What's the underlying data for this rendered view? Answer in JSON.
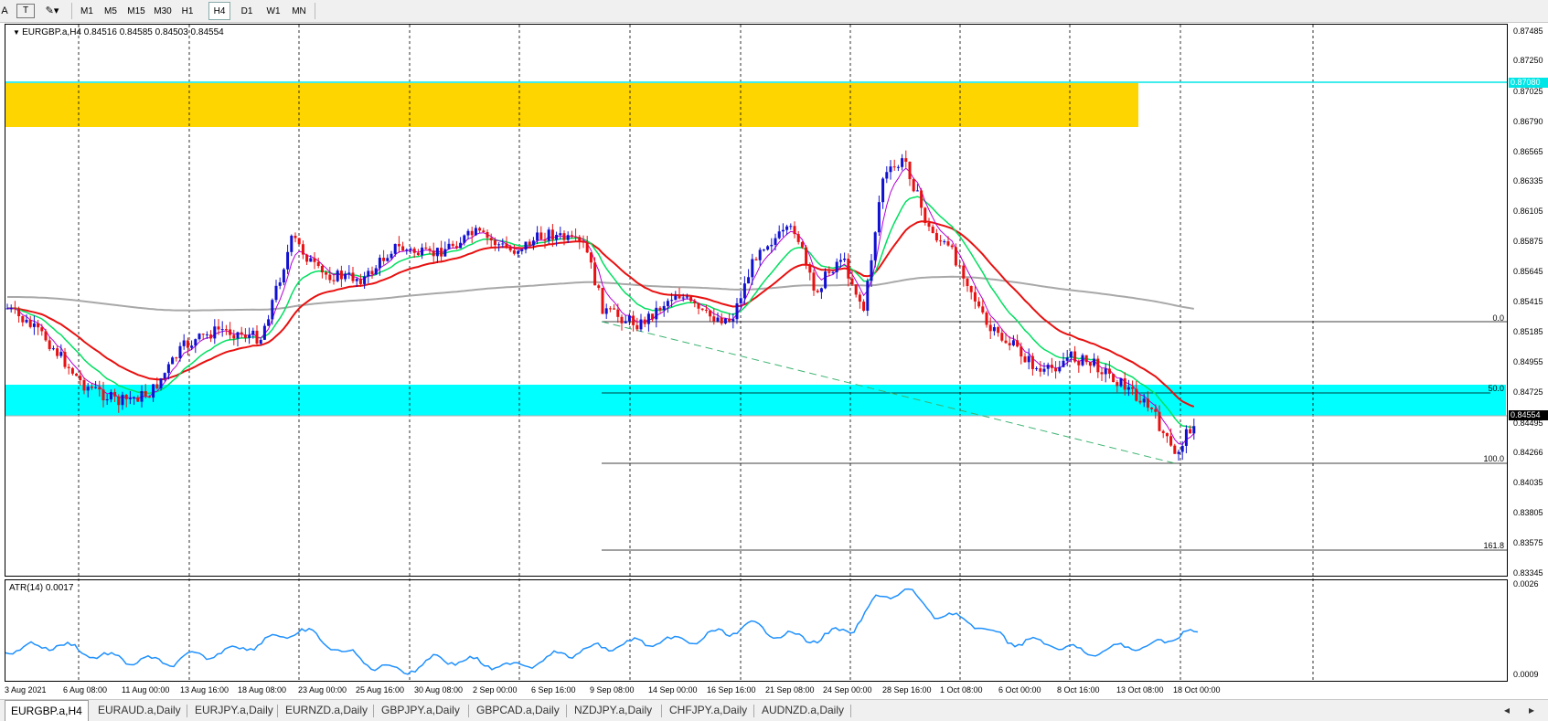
{
  "toolbar": {
    "cursor_label": "A",
    "text_label": "T",
    "shapes_label": "▾",
    "timeframes": [
      "M1",
      "M5",
      "M15",
      "M30",
      "H1",
      "H4",
      "D1",
      "W1",
      "MN"
    ],
    "active_timeframe": "H4"
  },
  "chart": {
    "symbol_line": "EURGBP.a,H4 0.84516 0.84585 0.84503 0.84554",
    "atr_label": "ATR(14) 0.0017",
    "price_labels": [
      "0.87485",
      "0.87250",
      "0.87025",
      "0.86790",
      "0.86565",
      "0.86335",
      "0.86105",
      "0.85875",
      "0.85645",
      "0.85415",
      "0.85185",
      "0.84955",
      "0.84725",
      "0.84495",
      "0.84266",
      "0.84035",
      "0.83805",
      "0.83575",
      "0.83345"
    ],
    "hline_price_tag": "0.87080",
    "current_price_tag": "0.84554",
    "atr_labels": [
      "0.0026",
      "0.0009"
    ],
    "time_labels": [
      "3 Aug 2021",
      "6 Aug 08:00",
      "11 Aug 00:00",
      "13 Aug 16:00",
      "18 Aug 08:00",
      "23 Aug 00:00",
      "25 Aug 16:00",
      "30 Aug 08:00",
      "2 Sep 00:00",
      "6 Sep 16:00",
      "9 Sep 08:00",
      "14 Sep 00:00",
      "16 Sep 16:00",
      "21 Sep 08:00",
      "24 Sep 00:00",
      "28 Sep 16:00",
      "1 Oct 08:00",
      "6 Oct 00:00",
      "8 Oct 16:00",
      "13 Oct 08:00",
      "18 Oct 00:00"
    ],
    "fibo_levels": [
      "0.0",
      "50.0",
      "100.0",
      "161.8"
    ],
    "colors": {
      "supply_zone": "#ffd500",
      "demand_zone": "#00ffff",
      "ma_fast": "#b400d4",
      "ma_mid": "#00e060",
      "ma_slow": "#e81010",
      "ma_long": "#a8a8a8",
      "atr_line": "#1e90ff",
      "bull_candle": "#1010d0",
      "bear_candle": "#e81010"
    }
  },
  "tabs": [
    "EURGBP.a,H4",
    "EURAUD.a,Daily",
    "EURJPY.a,Daily",
    "EURNZD.a,Daily",
    "GBPJPY.a,Daily",
    "GBPCAD.a,Daily",
    "NZDJPY.a,Daily",
    "CHFJPY.a,Daily",
    "AUDNZD.a,Daily"
  ],
  "active_tab": "EURGBP.a,H4",
  "tab_nav": [
    "◂",
    "▸"
  ]
}
